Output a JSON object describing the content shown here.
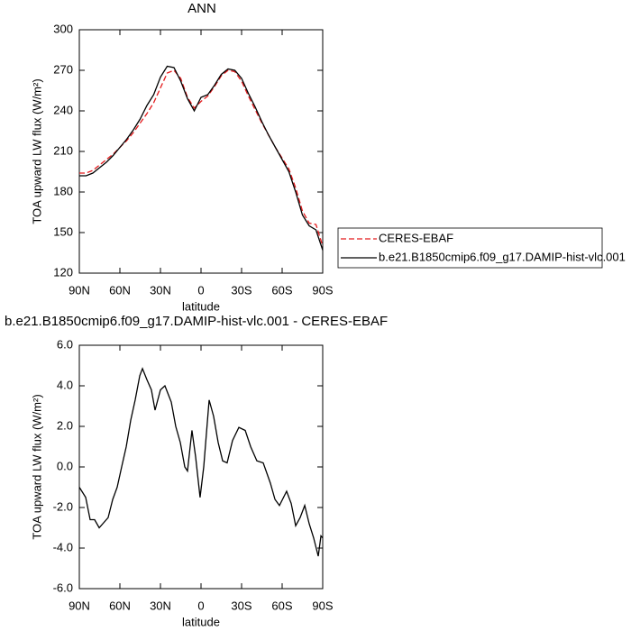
{
  "chart_data": [
    {
      "type": "line",
      "title": "ANN",
      "xlabel": "latitude",
      "ylabel": "TOA upward LW flux (W/m²)",
      "x": [
        90,
        85,
        80,
        75,
        70,
        65,
        60,
        55,
        50,
        45,
        40,
        35,
        30,
        25,
        20,
        15,
        10,
        5,
        0,
        -5,
        -10,
        -15,
        -20,
        -25,
        -30,
        -35,
        -40,
        -45,
        -50,
        -55,
        -60,
        -65,
        -70,
        -75,
        -80,
        -85,
        -90
      ],
      "series": [
        {
          "name": "CERES-EBAF",
          "color": "#e41a1c",
          "style": "dashed",
          "values": [
            194,
            194,
            196,
            200,
            204,
            208,
            213,
            218,
            224,
            231,
            238,
            246,
            257,
            268,
            270,
            264,
            250,
            242,
            247,
            251,
            258,
            266,
            270,
            269,
            262,
            251,
            241,
            231,
            222,
            213,
            205,
            197,
            183,
            166,
            157,
            156,
            140
          ]
        },
        {
          "name": "b.e21.B1850cmip6.f09_g17.DAMIP-hist-vlc.001",
          "color": "#000000",
          "style": "solid",
          "values": [
            192,
            192,
            194,
            198,
            202,
            207,
            213,
            219,
            226,
            234,
            244,
            252,
            265,
            273,
            272,
            262,
            249,
            240,
            250,
            252,
            259,
            267,
            271,
            270,
            264,
            253,
            243,
            232,
            222,
            213,
            204,
            195,
            180,
            163,
            155,
            152,
            137
          ]
        }
      ],
      "xlim": [
        90,
        -90
      ],
      "xticks": [
        {
          "value": 90,
          "label": "90N"
        },
        {
          "value": 60,
          "label": "60N"
        },
        {
          "value": 30,
          "label": "30N"
        },
        0,
        {
          "value": -30,
          "label": "30S"
        },
        {
          "value": -60,
          "label": "60S"
        },
        {
          "value": -90,
          "label": "90S"
        }
      ],
      "ylim": [
        120,
        300
      ],
      "yticks": [
        120,
        150,
        180,
        210,
        240,
        270,
        300
      ],
      "legend": "outside-right"
    },
    {
      "type": "line",
      "title": "b.e21.B1850cmip6.f09_g17.DAMIP-hist-vlc.001 - CERES-EBAF",
      "xlabel": "latitude",
      "ylabel": "TOA upward LW flux (W/m²)",
      "x": [
        90,
        85.3,
        82,
        78.7,
        75.3,
        68.7,
        65.3,
        62,
        58.7,
        55.3,
        52,
        48.7,
        45.3,
        43.3,
        40,
        36.7,
        34,
        30,
        26.7,
        22,
        18.7,
        15.3,
        12,
        10,
        6.7,
        4,
        0.7,
        -2,
        -6,
        -9.3,
        -12.7,
        -16,
        -19.3,
        -23.3,
        -28,
        -32.7,
        -36.7,
        -41.3,
        -46,
        -51.3,
        -54.7,
        -58,
        -63.3,
        -66.7,
        -70,
        -73.3,
        -76.7,
        -80,
        -83.3,
        -86.7,
        -88.7,
        -90
      ],
      "series": [
        {
          "name": null,
          "color": "#000000",
          "style": "solid",
          "values": [
            -1.0,
            -1.5,
            -2.6,
            -2.6,
            -3.0,
            -2.5,
            -1.6,
            -1.0,
            0.0,
            1.0,
            2.3,
            3.3,
            4.5,
            4.85,
            4.3,
            3.8,
            2.8,
            3.8,
            4.0,
            3.2,
            2.0,
            1.2,
            0.0,
            -0.2,
            1.8,
            0.5,
            -1.5,
            0.0,
            3.3,
            2.5,
            1.2,
            0.3,
            0.2,
            1.3,
            1.95,
            1.8,
            1.0,
            0.3,
            0.2,
            -0.8,
            -1.6,
            -1.9,
            -1.2,
            -1.8,
            -2.9,
            -2.5,
            -1.9,
            -2.8,
            -3.5,
            -4.4,
            -3.4,
            -3.5
          ]
        }
      ],
      "xlim": [
        90,
        -90
      ],
      "xticks": [
        {
          "value": 90,
          "label": "90N"
        },
        {
          "value": 60,
          "label": "60N"
        },
        {
          "value": 30,
          "label": "30N"
        },
        0,
        {
          "value": -30,
          "label": "30S"
        },
        {
          "value": -60,
          "label": "60S"
        },
        {
          "value": -90,
          "label": "90S"
        }
      ],
      "ylim": [
        -6,
        6
      ],
      "yticks": [
        {
          "value": -6,
          "label": "-6.0"
        },
        {
          "value": -4,
          "label": "-4.0"
        },
        {
          "value": -2,
          "label": "-2.0"
        },
        {
          "value": 0,
          "label": "0.0"
        },
        {
          "value": 2,
          "label": "2.0"
        },
        {
          "value": 4,
          "label": "4.0"
        },
        {
          "value": 6,
          "label": "6.0"
        }
      ]
    }
  ]
}
